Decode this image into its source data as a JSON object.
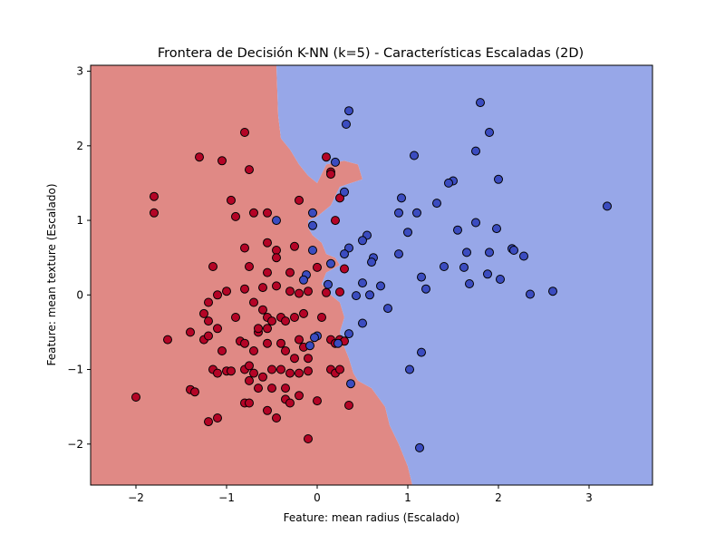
{
  "colors": {
    "class0_region": "#e08985",
    "class1_region": "#97a7e8",
    "class0_point": "#b40426",
    "class1_point": "#3b4cc0",
    "point_edge": "#000000"
  },
  "chart_data": {
    "type": "scatter",
    "title": "Frontera de Decisión K-NN (k=5) - Características Escaladas (2D)",
    "xlabel": "Feature: mean radius (Escalado)",
    "ylabel": "Feature: mean texture (Escalado)",
    "xlim": [
      -2.5,
      3.7
    ],
    "ylim": [
      -2.55,
      3.08
    ],
    "x_ticks": [
      -2,
      -1,
      0,
      1,
      2,
      3
    ],
    "y_ticks": [
      -2,
      -1,
      0,
      1,
      2,
      3
    ],
    "x_tick_labels": [
      "−2",
      "−1",
      "0",
      "1",
      "2",
      "3"
    ],
    "y_tick_labels": [
      "−2",
      "−1",
      "0",
      "1",
      "2",
      "3"
    ],
    "grid": false,
    "decision_boundary": [
      [
        -0.45,
        3.08
      ],
      [
        -0.43,
        2.4
      ],
      [
        -0.4,
        2.1
      ],
      [
        -0.3,
        1.95
      ],
      [
        -0.2,
        1.75
      ],
      [
        -0.1,
        1.6
      ],
      [
        0.0,
        1.5
      ],
      [
        0.1,
        1.75
      ],
      [
        0.3,
        1.8
      ],
      [
        0.45,
        1.75
      ],
      [
        0.5,
        1.55
      ],
      [
        0.25,
        1.45
      ],
      [
        0.15,
        1.2
      ],
      [
        0.0,
        1.05
      ],
      [
        -0.1,
        1.0
      ],
      [
        -0.1,
        0.9
      ],
      [
        -0.05,
        0.8
      ],
      [
        0.05,
        0.7
      ],
      [
        0.1,
        0.55
      ],
      [
        0.2,
        0.5
      ],
      [
        0.25,
        0.4
      ],
      [
        0.1,
        0.3
      ],
      [
        0.05,
        0.15
      ],
      [
        0.15,
        0.0
      ],
      [
        0.25,
        -0.1
      ],
      [
        0.3,
        -0.3
      ],
      [
        0.25,
        -0.5
      ],
      [
        0.3,
        -0.7
      ],
      [
        0.35,
        -0.85
      ],
      [
        0.4,
        -1.05
      ],
      [
        0.45,
        -1.15
      ],
      [
        0.6,
        -1.25
      ],
      [
        0.75,
        -1.5
      ],
      [
        0.8,
        -1.75
      ],
      [
        0.9,
        -2.0
      ],
      [
        1.0,
        -2.3
      ],
      [
        1.05,
        -2.55
      ]
    ],
    "series": [
      {
        "values": [
          [
            -0.8,
            2.18
          ],
          [
            -1.3,
            1.85
          ],
          [
            -1.05,
            1.8
          ],
          [
            -0.75,
            1.68
          ],
          [
            -1.8,
            1.32
          ],
          [
            -1.8,
            1.1
          ],
          [
            -0.95,
            1.27
          ],
          [
            -0.9,
            1.05
          ],
          [
            -0.7,
            1.1
          ],
          [
            -0.55,
            1.1
          ],
          [
            -0.55,
            0.7
          ],
          [
            -0.25,
            0.65
          ],
          [
            -0.8,
            0.63
          ],
          [
            -0.45,
            0.6
          ],
          [
            -0.45,
            0.5
          ],
          [
            -0.75,
            0.38
          ],
          [
            -1.15,
            0.38
          ],
          [
            -0.55,
            0.3
          ],
          [
            -0.3,
            0.3
          ],
          [
            0.0,
            0.37
          ],
          [
            -1.0,
            0.05
          ],
          [
            -0.8,
            0.08
          ],
          [
            -1.1,
            0.0
          ],
          [
            -1.2,
            -0.1
          ],
          [
            -0.6,
            0.1
          ],
          [
            -0.45,
            0.12
          ],
          [
            -0.3,
            0.05
          ],
          [
            -0.2,
            0.02
          ],
          [
            -0.1,
            0.05
          ],
          [
            0.1,
            0.03
          ],
          [
            0.25,
            0.04
          ],
          [
            -1.25,
            -0.25
          ],
          [
            -1.2,
            -0.35
          ],
          [
            -1.1,
            -0.45
          ],
          [
            -1.4,
            -0.5
          ],
          [
            -0.9,
            -0.3
          ],
          [
            -0.7,
            -0.1
          ],
          [
            -0.6,
            -0.2
          ],
          [
            -0.55,
            -0.3
          ],
          [
            -0.4,
            -0.3
          ],
          [
            -0.35,
            -0.35
          ],
          [
            -0.25,
            -0.3
          ],
          [
            -0.15,
            -0.25
          ],
          [
            -0.5,
            -0.35
          ],
          [
            -0.55,
            -0.45
          ],
          [
            -0.65,
            -0.5
          ],
          [
            -0.65,
            -0.45
          ],
          [
            0.05,
            -0.3
          ],
          [
            -1.65,
            -0.6
          ],
          [
            -1.25,
            -0.6
          ],
          [
            -1.2,
            -0.55
          ],
          [
            -1.05,
            -0.75
          ],
          [
            -0.85,
            -0.62
          ],
          [
            -0.8,
            -0.65
          ],
          [
            -0.7,
            -0.75
          ],
          [
            -0.55,
            -0.65
          ],
          [
            -0.4,
            -0.65
          ],
          [
            -0.35,
            -0.75
          ],
          [
            -0.2,
            -0.6
          ],
          [
            -0.15,
            -0.7
          ],
          [
            -0.25,
            -0.85
          ],
          [
            -0.1,
            -0.85
          ],
          [
            0.15,
            -0.6
          ],
          [
            0.2,
            -0.65
          ],
          [
            0.25,
            -0.6
          ],
          [
            0.3,
            -0.62
          ],
          [
            -1.15,
            -1.0
          ],
          [
            -1.1,
            -1.05
          ],
          [
            -1.0,
            -1.02
          ],
          [
            -0.95,
            -1.02
          ],
          [
            -0.8,
            -1.0
          ],
          [
            -0.75,
            -0.95
          ],
          [
            -0.7,
            -1.05
          ],
          [
            -0.6,
            -1.1
          ],
          [
            -0.5,
            -1.0
          ],
          [
            -0.4,
            -1.0
          ],
          [
            -0.3,
            -1.05
          ],
          [
            -0.2,
            -1.05
          ],
          [
            -0.1,
            -1.02
          ],
          [
            0.15,
            -1.0
          ],
          [
            0.2,
            -1.05
          ],
          [
            0.25,
            -1.0
          ],
          [
            -1.4,
            -1.27
          ],
          [
            -1.35,
            -1.3
          ],
          [
            -0.75,
            -1.15
          ],
          [
            -0.65,
            -1.25
          ],
          [
            -0.5,
            -1.25
          ],
          [
            -0.35,
            -1.25
          ],
          [
            -0.8,
            -1.45
          ],
          [
            -0.75,
            -1.45
          ],
          [
            -0.35,
            -1.4
          ],
          [
            -0.3,
            -1.45
          ],
          [
            -0.2,
            -1.35
          ],
          [
            0.0,
            -1.42
          ],
          [
            0.35,
            -1.48
          ],
          [
            -2.0,
            -1.37
          ],
          [
            -1.1,
            -1.65
          ],
          [
            -1.2,
            -1.7
          ],
          [
            -0.55,
            -1.55
          ],
          [
            -0.45,
            -1.65
          ],
          [
            -0.1,
            -1.93
          ],
          [
            0.1,
            1.85
          ],
          [
            0.15,
            1.65
          ],
          [
            0.25,
            1.3
          ],
          [
            0.2,
            1.0
          ],
          [
            0.15,
            1.62
          ],
          [
            -0.2,
            1.27
          ],
          [
            0.3,
            0.35
          ]
        ]
      },
      {
        "values": [
          [
            0.35,
            2.47
          ],
          [
            0.32,
            2.29
          ],
          [
            1.8,
            2.58
          ],
          [
            1.9,
            2.18
          ],
          [
            1.75,
            1.93
          ],
          [
            1.07,
            1.87
          ],
          [
            0.2,
            1.78
          ],
          [
            2.0,
            1.55
          ],
          [
            1.5,
            1.53
          ],
          [
            1.45,
            1.5
          ],
          [
            0.3,
            1.38
          ],
          [
            0.93,
            1.3
          ],
          [
            1.32,
            1.23
          ],
          [
            0.9,
            1.1
          ],
          [
            1.1,
            1.1
          ],
          [
            -0.45,
            1.0
          ],
          [
            -0.05,
            1.1
          ],
          [
            -0.05,
            0.93
          ],
          [
            1.75,
            0.97
          ],
          [
            1.55,
            0.87
          ],
          [
            1.98,
            0.89
          ],
          [
            1.0,
            0.84
          ],
          [
            0.55,
            0.8
          ],
          [
            0.5,
            0.73
          ],
          [
            0.35,
            0.63
          ],
          [
            -0.05,
            0.6
          ],
          [
            0.3,
            0.55
          ],
          [
            0.62,
            0.5
          ],
          [
            0.6,
            0.44
          ],
          [
            0.9,
            0.55
          ],
          [
            1.65,
            0.57
          ],
          [
            1.9,
            0.57
          ],
          [
            2.15,
            0.62
          ],
          [
            2.17,
            0.6
          ],
          [
            2.28,
            0.52
          ],
          [
            3.2,
            1.19
          ],
          [
            0.15,
            0.42
          ],
          [
            1.4,
            0.38
          ],
          [
            1.62,
            0.37
          ],
          [
            -0.12,
            0.27
          ],
          [
            -0.15,
            0.2
          ],
          [
            0.5,
            0.16
          ],
          [
            0.7,
            0.12
          ],
          [
            1.15,
            0.24
          ],
          [
            1.2,
            0.08
          ],
          [
            1.68,
            0.15
          ],
          [
            1.88,
            0.28
          ],
          [
            2.02,
            0.21
          ],
          [
            2.35,
            0.01
          ],
          [
            2.6,
            0.05
          ],
          [
            0.12,
            0.14
          ],
          [
            0.43,
            -0.01
          ],
          [
            0.58,
            0.0
          ],
          [
            0.78,
            -0.18
          ],
          [
            0.5,
            -0.38
          ],
          [
            0.35,
            -0.52
          ],
          [
            0.0,
            -0.55
          ],
          [
            -0.03,
            -0.57
          ],
          [
            0.23,
            -0.65
          ],
          [
            -0.08,
            -0.68
          ],
          [
            1.15,
            -0.77
          ],
          [
            1.02,
            -1.0
          ],
          [
            0.37,
            -1.19
          ],
          [
            1.13,
            -2.05
          ]
        ]
      }
    ]
  }
}
